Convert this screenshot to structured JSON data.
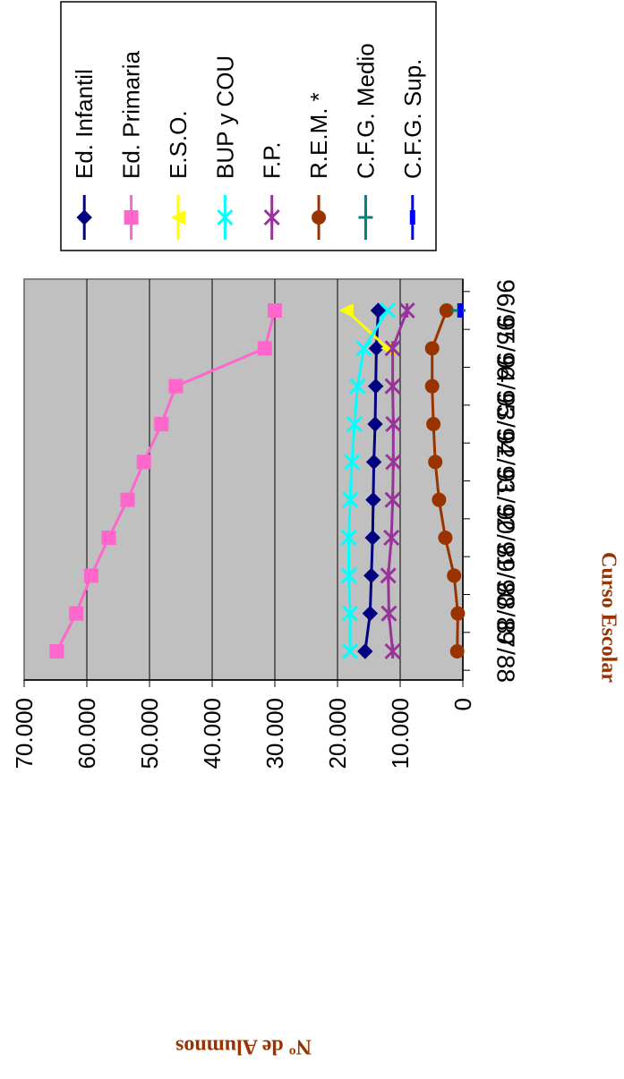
{
  "chart_data": {
    "type": "line",
    "title": "",
    "xlabel": "Curso Escolar",
    "ylabel": "Nº de Alumnos",
    "categories": [
      "87/88",
      "88/89",
      "89/90",
      "90/91",
      "91/92",
      "92/93",
      "93/94",
      "94/95",
      "95/96",
      "96/97"
    ],
    "ylim": [
      0,
      70000
    ],
    "yticks": [
      0,
      10000,
      20000,
      30000,
      40000,
      50000,
      60000,
      70000
    ],
    "ytick_labels": [
      "0",
      "10.000",
      "20.000",
      "30.000",
      "40.000",
      "50.000",
      "60.000",
      "70.000"
    ],
    "grid": true,
    "legend_position": "top",
    "series": [
      {
        "name": "Ed. Infantil",
        "color": "#000080",
        "marker": "diamond",
        "values": [
          15600,
          14800,
          14600,
          14400,
          14300,
          14200,
          14000,
          13900,
          13800,
          13500
        ]
      },
      {
        "name": "Ed. Primaria",
        "color": "#FF66CC",
        "marker": "square",
        "values": [
          64800,
          61700,
          59300,
          56500,
          53500,
          50900,
          48100,
          45800,
          31600,
          30000
        ]
      },
      {
        "name": "E.S.O.",
        "color": "#FFFF00",
        "marker": "triangle",
        "values": [
          null,
          null,
          null,
          null,
          null,
          null,
          null,
          null,
          12000,
          18600
        ]
      },
      {
        "name": "BUP y COU",
        "color": "#00FFFF",
        "marker": "x",
        "values": [
          18000,
          18000,
          18200,
          18200,
          18000,
          17700,
          17300,
          16800,
          15800,
          12000
        ]
      },
      {
        "name": "F.P.",
        "color": "#993399",
        "marker": "star",
        "values": [
          11200,
          11800,
          11900,
          11400,
          11200,
          11100,
          11100,
          11200,
          11200,
          8900
        ]
      },
      {
        "name": "R.E.M. *",
        "color": "#993300",
        "marker": "circle",
        "values": [
          900,
          800,
          1400,
          2800,
          3800,
          4400,
          4700,
          4900,
          4900,
          2600
        ]
      },
      {
        "name": "C.F.G. Medio",
        "color": "#008080",
        "marker": "plus",
        "values": [
          null,
          null,
          null,
          null,
          null,
          null,
          null,
          null,
          null,
          700
        ]
      },
      {
        "name": "C.F.G. Sup.",
        "color": "#0000FF",
        "marker": "dash",
        "values": [
          null,
          null,
          null,
          null,
          null,
          null,
          null,
          null,
          null,
          400
        ]
      }
    ]
  }
}
